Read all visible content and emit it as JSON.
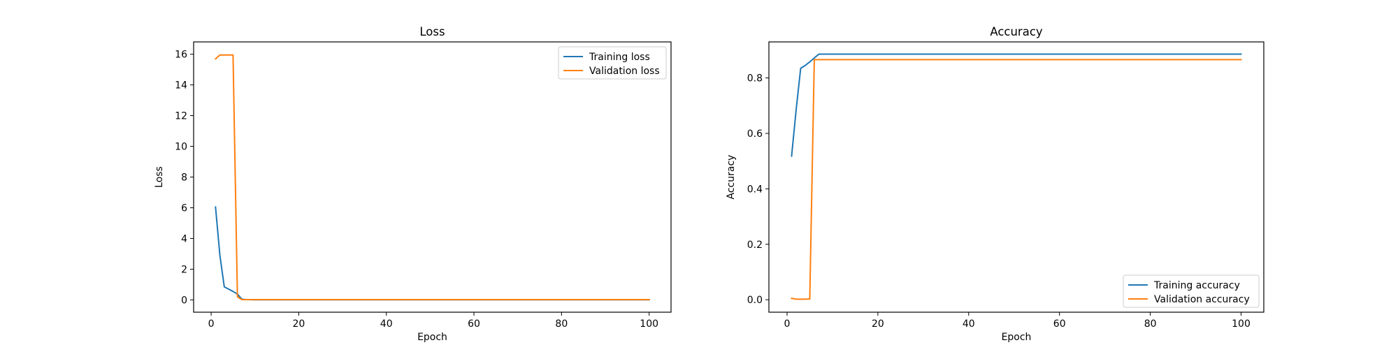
{
  "chart_data": [
    {
      "type": "line",
      "title": "Loss",
      "xlabel": "Epoch",
      "ylabel": "Loss",
      "xlim": [
        -4,
        105
      ],
      "ylim": [
        -0.8,
        16.8
      ],
      "xticks": [
        0,
        20,
        40,
        60,
        80,
        100
      ],
      "yticks": [
        0,
        2,
        4,
        6,
        8,
        10,
        12,
        14,
        16
      ],
      "grid": false,
      "legend_position": "top-right",
      "series": [
        {
          "name": "Training loss",
          "color": "#1f77b4",
          "x": [
            1,
            2,
            3,
            4,
            5,
            6,
            7,
            8,
            10,
            20,
            40,
            60,
            80,
            100
          ],
          "y": [
            6.05,
            2.9,
            0.85,
            0.7,
            0.55,
            0.38,
            0.05,
            0.02,
            0.01,
            0.01,
            0.01,
            0.01,
            0.01,
            0.01
          ]
        },
        {
          "name": "Validation loss",
          "color": "#ff7f0e",
          "x": [
            1,
            2,
            3,
            4,
            5,
            6,
            7,
            8,
            10,
            20,
            40,
            60,
            80,
            100
          ],
          "y": [
            15.7,
            15.95,
            15.95,
            15.95,
            15.95,
            0.2,
            0.02,
            0.02,
            0.02,
            0.02,
            0.02,
            0.02,
            0.02,
            0.02
          ]
        }
      ]
    },
    {
      "type": "line",
      "title": "Accuracy",
      "xlabel": "Epoch",
      "ylabel": "Accuracy",
      "xlim": [
        -4,
        105
      ],
      "ylim": [
        -0.045,
        0.93
      ],
      "xticks": [
        0,
        20,
        40,
        60,
        80,
        100
      ],
      "yticks": [
        0.0,
        0.2,
        0.4,
        0.6,
        0.8
      ],
      "ytick_labels": [
        "0.0",
        "0.2",
        "0.4",
        "0.6",
        "0.8"
      ],
      "grid": false,
      "legend_position": "bottom-right",
      "series": [
        {
          "name": "Training accuracy",
          "color": "#1f77b4",
          "x": [
            1,
            2,
            3,
            4,
            5,
            6,
            7,
            8,
            10,
            20,
            40,
            60,
            80,
            100
          ],
          "y": [
            0.518,
            0.685,
            0.835,
            0.845,
            0.858,
            0.872,
            0.886,
            0.886,
            0.886,
            0.886,
            0.886,
            0.886,
            0.886,
            0.886
          ]
        },
        {
          "name": "Validation accuracy",
          "color": "#ff7f0e",
          "x": [
            1,
            2,
            3,
            4,
            5,
            6,
            7,
            8,
            10,
            20,
            40,
            60,
            80,
            100
          ],
          "y": [
            0.005,
            0.002,
            0.002,
            0.002,
            0.003,
            0.866,
            0.866,
            0.866,
            0.866,
            0.866,
            0.866,
            0.866,
            0.866,
            0.866
          ]
        }
      ]
    }
  ]
}
